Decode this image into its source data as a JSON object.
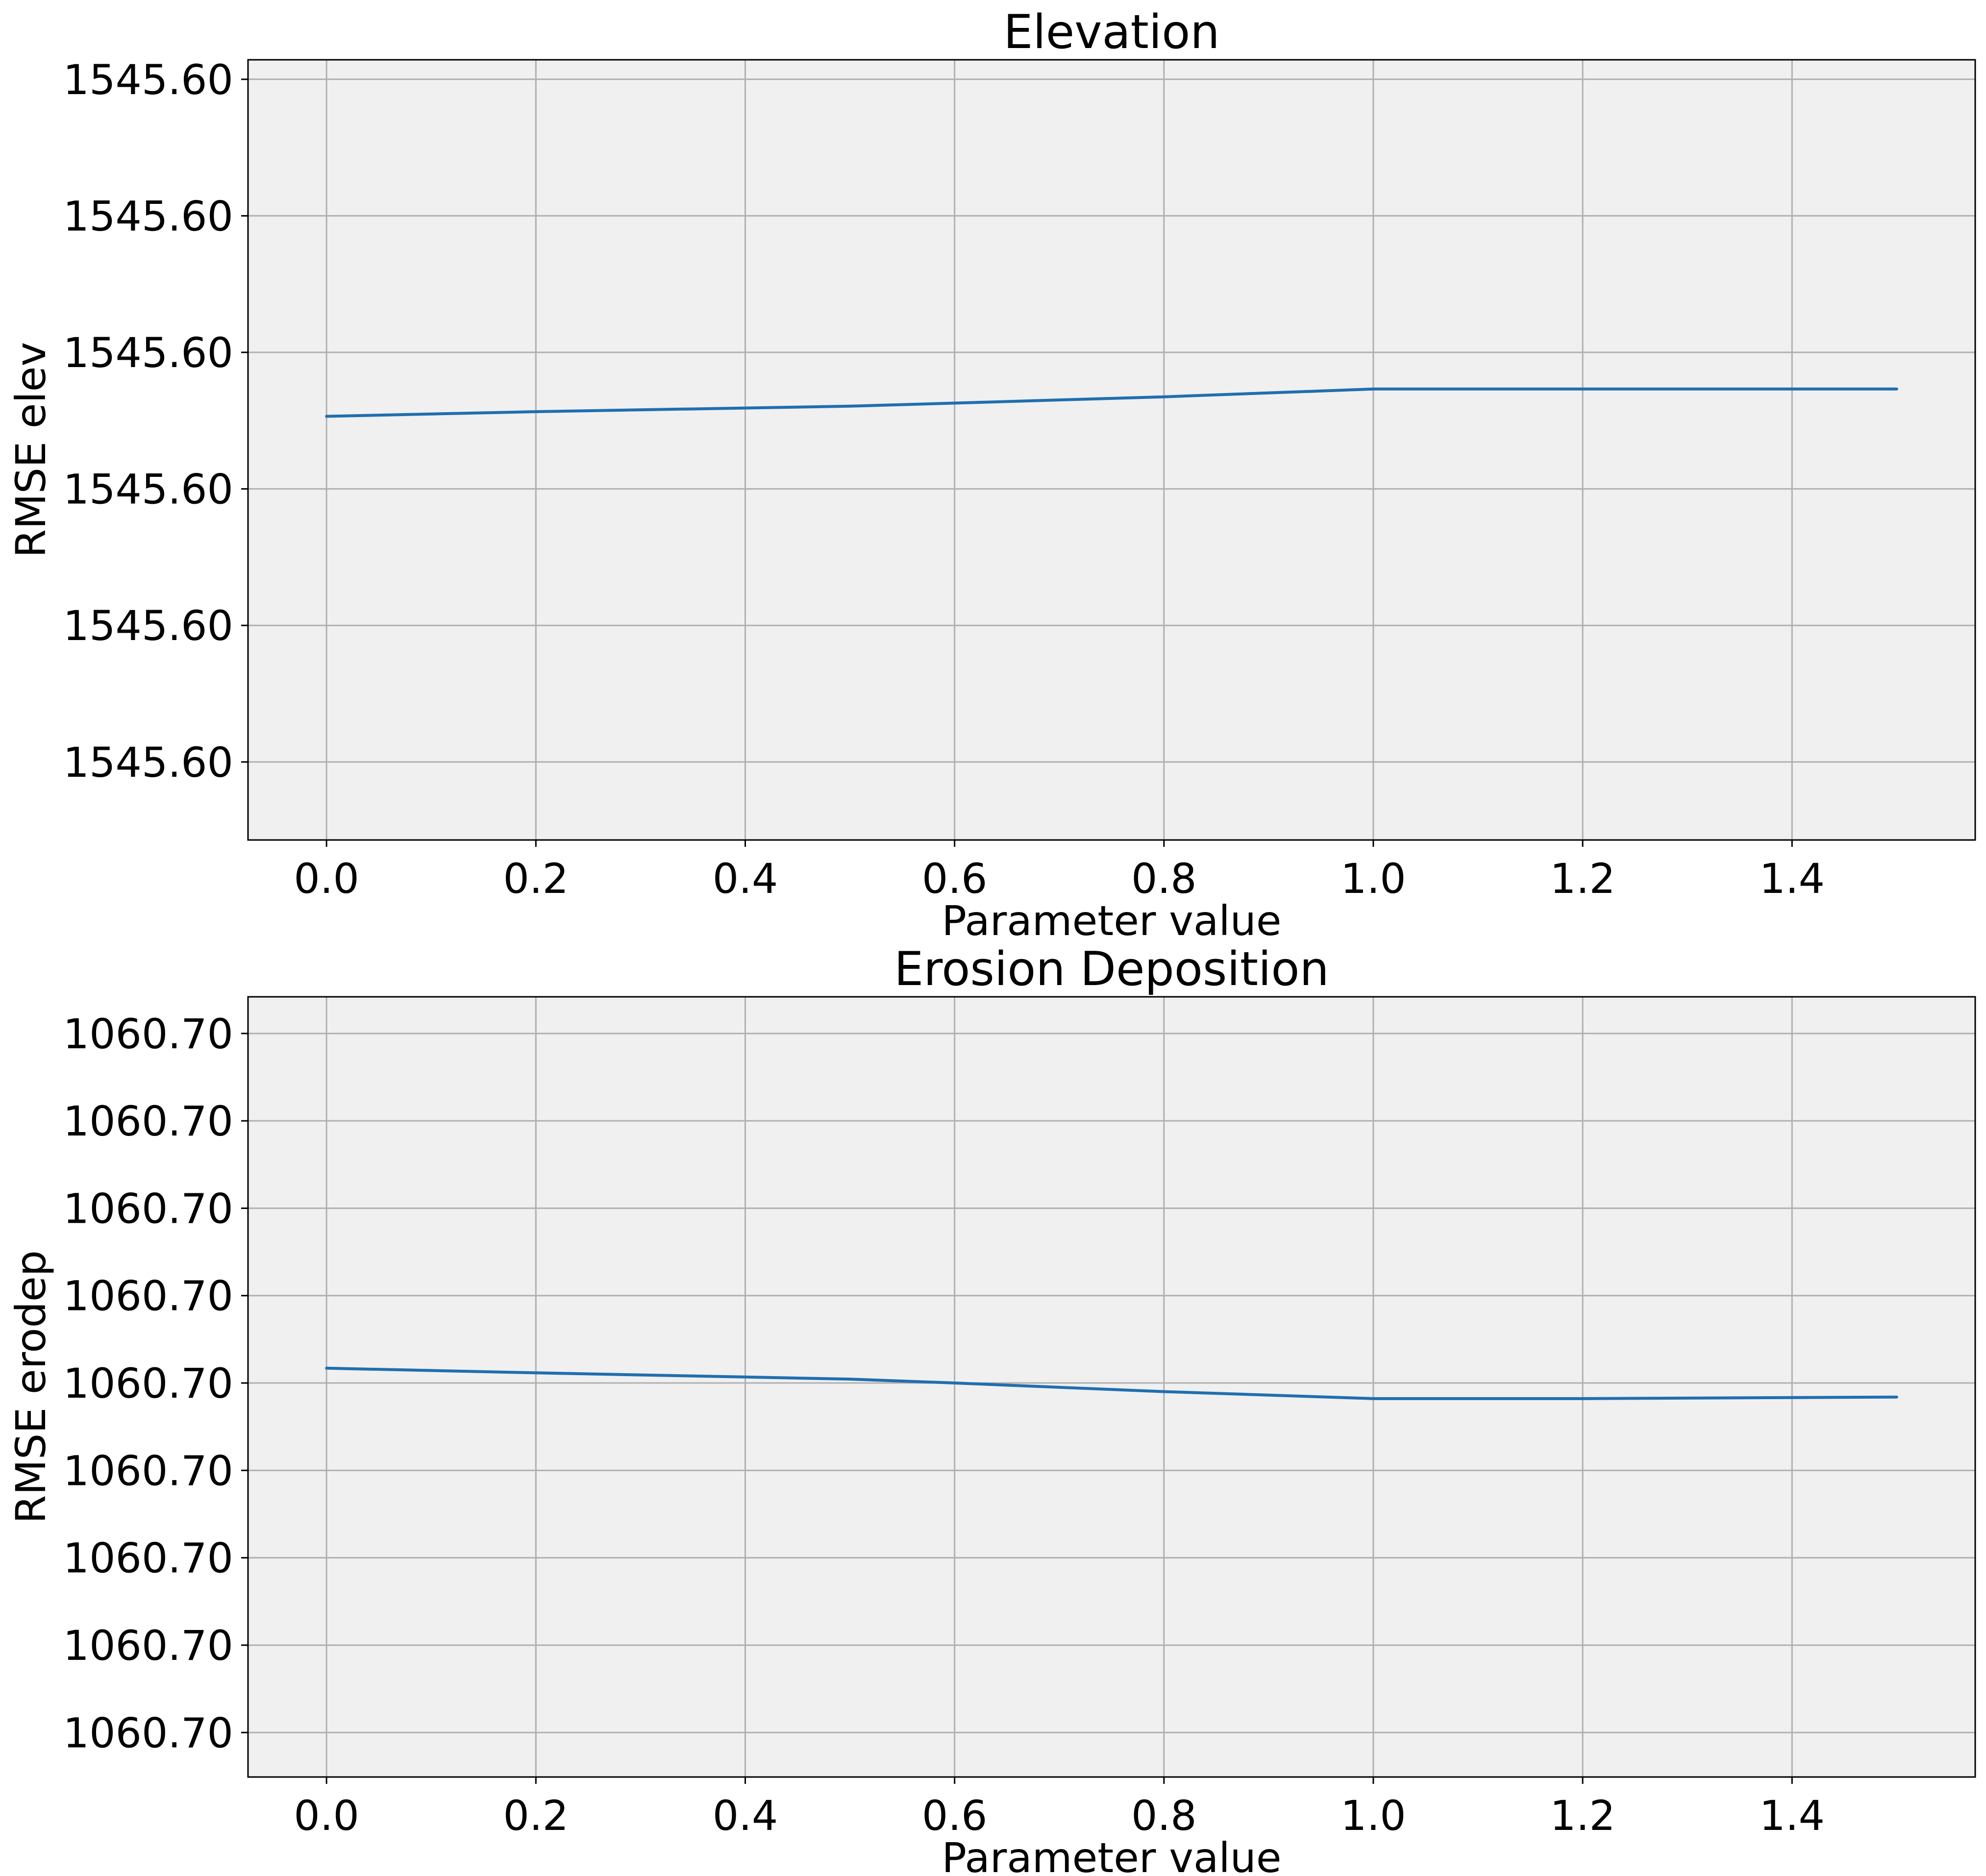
{
  "chart_data": [
    {
      "type": "line",
      "title": "Elevation",
      "xlabel": "Parameter value",
      "ylabel": "RMSE elev",
      "xlim": [
        -0.075,
        1.575
      ],
      "ylim": [
        0.0,
        1.0
      ],
      "grid": true,
      "x_ticks": [
        0.0,
        0.2,
        0.4,
        0.6,
        0.8,
        1.0,
        1.2,
        1.4
      ],
      "x_tick_labels": [
        "0.0",
        "0.2",
        "0.4",
        "0.6",
        "0.8",
        "1.0",
        "1.2",
        "1.4"
      ],
      "y_ticks": [
        0.1,
        0.275,
        0.45,
        0.625,
        0.8,
        0.975
      ],
      "y_tick_labels": [
        "1545.60",
        "1545.60",
        "1545.60",
        "1545.60",
        "1545.60",
        "1545.60"
      ],
      "series": [
        {
          "color": "#1f6fb0",
          "x": [
            0.0,
            0.2,
            0.5,
            0.6,
            0.8,
            1.0,
            1.2,
            1.5
          ],
          "y": [
            0.543,
            0.549,
            0.556,
            0.56,
            0.568,
            0.578,
            0.578,
            0.578
          ]
        }
      ]
    },
    {
      "type": "line",
      "title": "Erosion Deposition",
      "xlabel": "Parameter value",
      "ylabel": "RMSE erodep",
      "xlim": [
        -0.075,
        1.575
      ],
      "ylim": [
        0.0,
        1.0
      ],
      "grid": true,
      "x_ticks": [
        0.0,
        0.2,
        0.4,
        0.6,
        0.8,
        1.0,
        1.2,
        1.4
      ],
      "x_tick_labels": [
        "0.0",
        "0.2",
        "0.4",
        "0.6",
        "0.8",
        "1.0",
        "1.2",
        "1.4"
      ],
      "y_ticks": [
        0.057,
        0.169,
        0.281,
        0.393,
        0.505,
        0.617,
        0.729,
        0.841,
        0.953
      ],
      "y_tick_labels": [
        "1060.70",
        "1060.70",
        "1060.70",
        "1060.70",
        "1060.70",
        "1060.70",
        "1060.70",
        "1060.70",
        "1060.70"
      ],
      "series": [
        {
          "color": "#1f6fb0",
          "x": [
            0.0,
            0.2,
            0.5,
            0.6,
            0.8,
            1.0,
            1.2,
            1.5
          ],
          "y": [
            0.524,
            0.518,
            0.51,
            0.505,
            0.494,
            0.485,
            0.485,
            0.487
          ]
        }
      ]
    }
  ]
}
